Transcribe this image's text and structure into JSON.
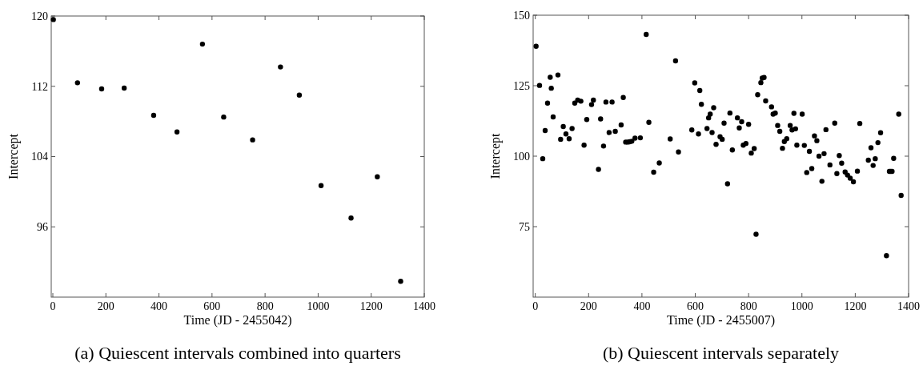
{
  "chart_data": [
    {
      "type": "scatter",
      "xlabel": "Time (JD - 2455042)",
      "ylabel": "Intercept",
      "color": "#000000",
      "marker": "circle",
      "grid": false,
      "xlim": [
        -6,
        1400
      ],
      "xticks": [
        0,
        200,
        400,
        600,
        800,
        1000,
        1200,
        1400
      ],
      "ylim": [
        88,
        120
      ],
      "yticks": [
        96,
        104,
        112,
        120
      ],
      "x": [
        2,
        93,
        184,
        269,
        380,
        468,
        564,
        644,
        753,
        858,
        929,
        1011,
        1124,
        1223,
        1311
      ],
      "values": [
        119.6,
        112.4,
        111.7,
        111.8,
        108.7,
        106.8,
        116.8,
        108.5,
        105.9,
        114.2,
        111.0,
        100.7,
        97.0,
        101.7,
        89.8
      ],
      "annotations": [
        "(a) Quiescent intervals combined into quarters"
      ]
    },
    {
      "type": "scatter",
      "xlabel": "Time (JD - 2455007)",
      "ylabel": "Intercept",
      "color": "#000000",
      "marker": "circle",
      "grid": false,
      "xlim": [
        -8,
        1400
      ],
      "xticks": [
        0,
        200,
        400,
        600,
        800,
        1000,
        1200,
        1400
      ],
      "ylim": [
        50,
        150
      ],
      "yticks": [
        75,
        100,
        125,
        150
      ],
      "x": [
        3,
        16,
        28,
        37,
        46,
        56,
        60,
        67,
        85,
        95,
        105,
        115,
        127,
        138,
        148,
        159,
        171,
        183,
        193,
        211,
        218,
        237,
        245,
        256,
        265,
        277,
        288,
        300,
        322,
        330,
        339,
        347,
        354,
        362,
        374,
        394,
        416,
        426,
        444,
        465,
        506,
        526,
        537,
        587,
        598,
        612,
        617,
        623,
        644,
        650,
        656,
        663,
        669,
        678,
        693,
        701,
        708,
        721,
        730,
        739,
        758,
        765,
        774,
        780,
        790,
        800,
        810,
        821,
        828,
        834,
        846,
        851,
        858,
        864,
        886,
        892,
        900,
        909,
        917,
        927,
        934,
        943,
        956,
        963,
        970,
        976,
        981,
        1001,
        1009,
        1018,
        1028,
        1037,
        1047,
        1056,
        1064,
        1075,
        1083,
        1090,
        1105,
        1123,
        1131,
        1140,
        1149,
        1162,
        1171,
        1181,
        1193,
        1208,
        1217,
        1249,
        1259,
        1267,
        1275,
        1285,
        1295,
        1317,
        1328,
        1333,
        1338,
        1344,
        1363,
        1372
      ],
      "values": [
        139.0,
        125.1,
        99.1,
        109.1,
        118.8,
        128.0,
        124.1,
        113.9,
        128.8,
        106.0,
        110.5,
        107.9,
        106.2,
        109.8,
        118.8,
        119.9,
        119.5,
        103.9,
        113.0,
        118.3,
        119.9,
        95.3,
        113.2,
        103.6,
        119.2,
        108.4,
        119.2,
        108.8,
        111.1,
        120.8,
        105.0,
        105.0,
        105.1,
        105.3,
        106.4,
        106.5,
        143.2,
        112.0,
        94.3,
        97.6,
        106.1,
        133.8,
        101.5,
        109.3,
        126.0,
        107.9,
        123.3,
        118.4,
        109.8,
        113.6,
        114.9,
        108.4,
        117.2,
        104.2,
        106.9,
        106.0,
        111.7,
        90.2,
        115.3,
        102.2,
        113.6,
        110.0,
        112.2,
        103.9,
        104.5,
        111.3,
        101.1,
        102.7,
        72.3,
        121.8,
        126.1,
        127.7,
        127.9,
        119.6,
        117.5,
        114.9,
        115.3,
        110.9,
        108.8,
        102.8,
        105.2,
        106.2,
        110.9,
        109.3,
        115.2,
        109.7,
        103.9,
        114.9,
        103.8,
        94.2,
        101.7,
        95.6,
        107.2,
        105.5,
        100.0,
        91.1,
        100.9,
        109.4,
        96.9,
        111.7,
        93.8,
        100.2,
        97.5,
        94.4,
        93.3,
        92.2,
        90.9,
        94.7,
        111.6,
        98.6,
        103.0,
        96.7,
        99.1,
        104.8,
        108.3,
        64.7,
        94.6,
        94.6,
        94.6,
        99.2,
        114.9,
        86.1
      ],
      "annotations": [
        "(b) Quiescent intervals separately"
      ]
    }
  ]
}
